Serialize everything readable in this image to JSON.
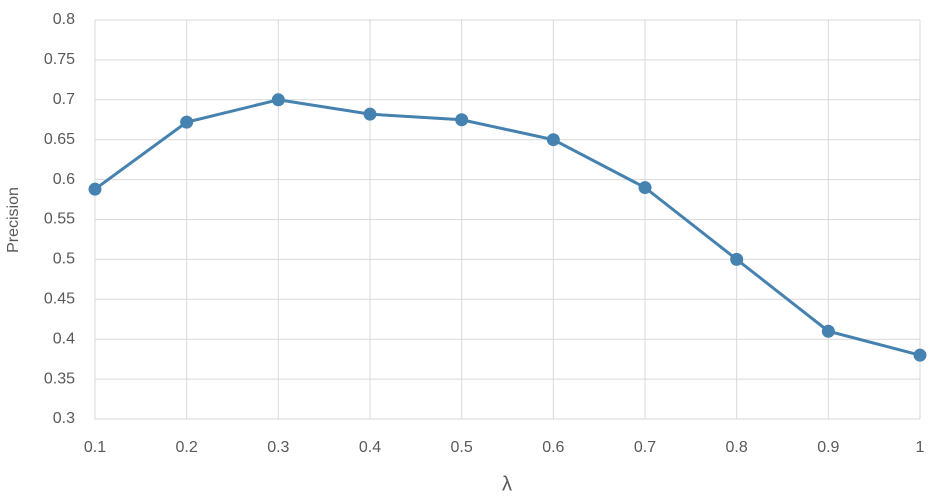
{
  "chart_data": {
    "type": "line",
    "x_label": "λ",
    "y_label": "Precision",
    "x": [
      0.1,
      0.2,
      0.3,
      0.4,
      0.5,
      0.6,
      0.7,
      0.8,
      0.9,
      1
    ],
    "series": [
      {
        "color": "#4682b0",
        "values": [
          0.588,
          0.672,
          0.7,
          0.682,
          0.675,
          0.65,
          0.59,
          0.5,
          0.41,
          0.38
        ]
      }
    ],
    "xlim": [
      0.1,
      1
    ],
    "xticks": [
      0.1,
      0.2,
      0.3,
      0.4,
      0.5,
      0.6,
      0.7,
      0.8,
      0.9,
      1
    ],
    "ylim": [
      0.3,
      0.8
    ],
    "yticks": [
      0.3,
      0.35,
      0.4,
      0.45,
      0.5,
      0.55,
      0.6,
      0.65,
      0.7,
      0.75,
      0.8
    ],
    "grid": true
  }
}
